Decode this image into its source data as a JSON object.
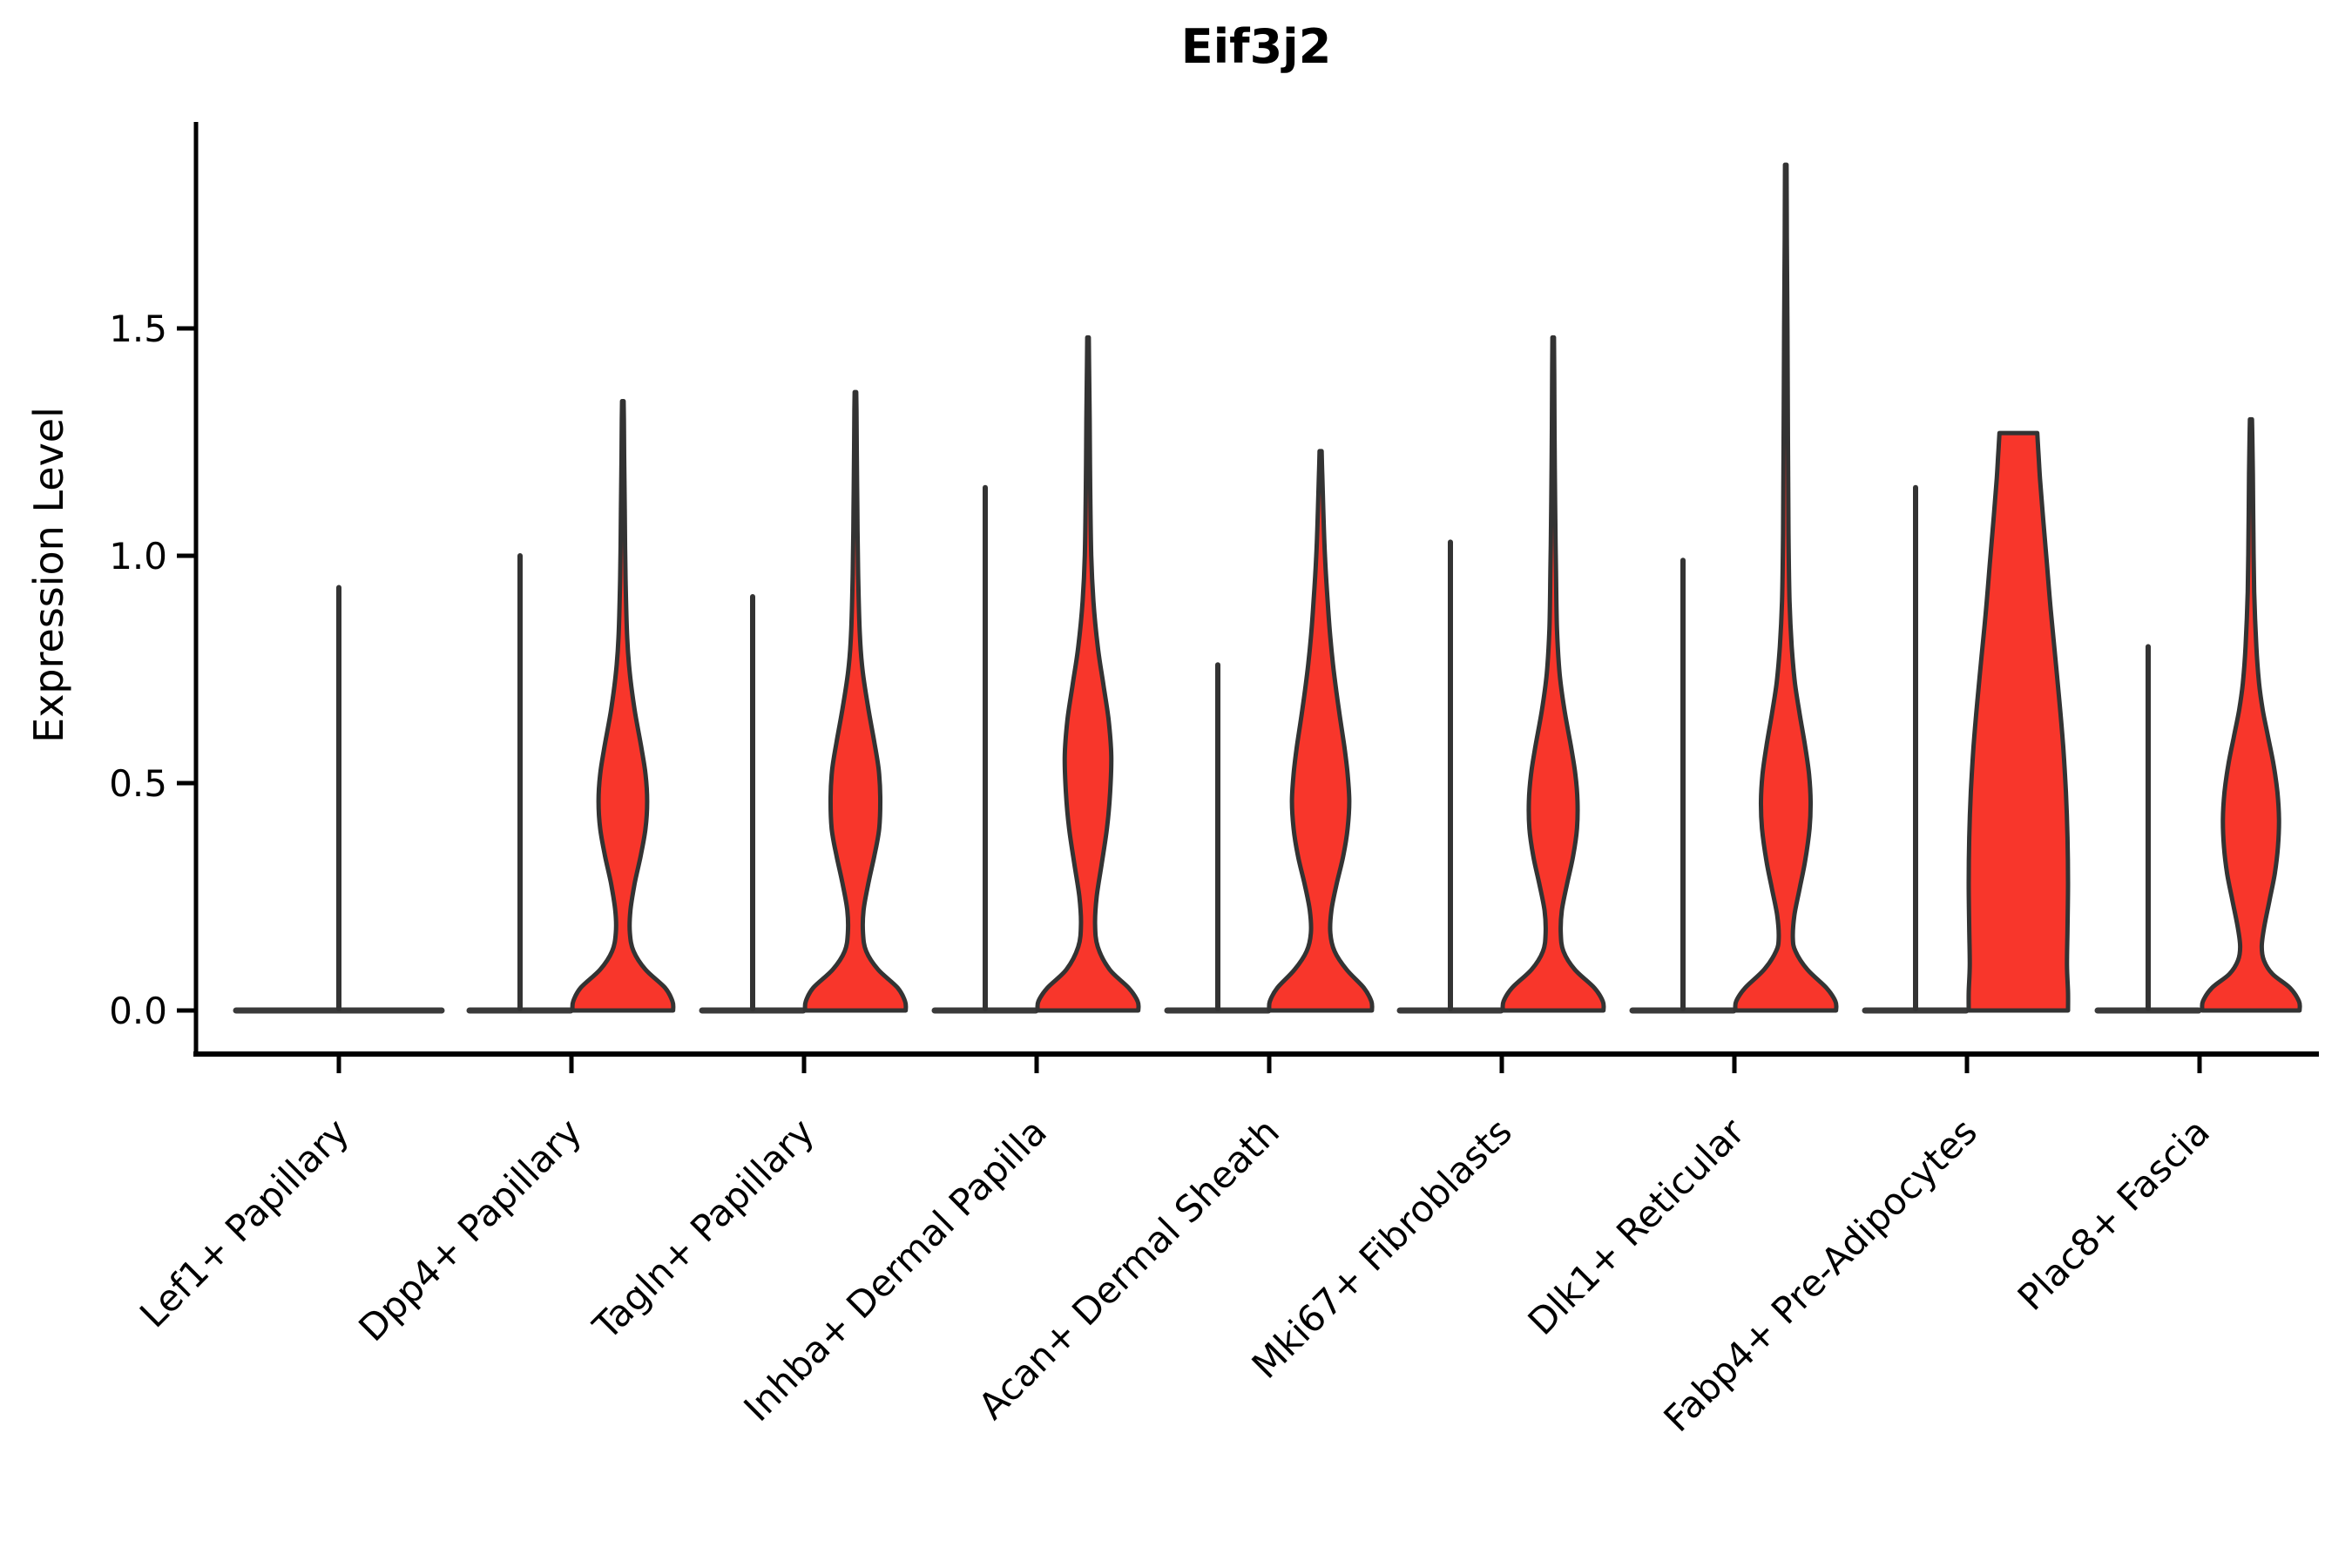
{
  "chart_data": {
    "type": "violin",
    "title": "Eif3j2",
    "ylabel": "Expression Level",
    "xlabel": "",
    "ylim": [
      -0.095,
      1.95
    ],
    "yticks": [
      0.0,
      0.5,
      1.0,
      1.5
    ],
    "ytick_labels": [
      "0.0",
      "0.5",
      "1.0",
      "1.5"
    ],
    "grid": false,
    "legend": "none",
    "fill_color": "#F8362B",
    "edge_color": "#333333",
    "spine_color": "#000000",
    "categories": [
      "Lef1+ Papillary",
      "Dpp4+ Papillary",
      "Tagln+ Papillary",
      "Inhba+ Dermal Papilla",
      "Acan+ Dermal Sheath",
      "Mki67+ Fibroblasts",
      "Dlk1+ Reticular",
      "Fabp4+ Pre-Adipocytes",
      "Plac8+ Fascia"
    ],
    "violins": [
      {
        "label": "Lef1+ Papillary",
        "layout": "single",
        "zero_spike_max": 0.93,
        "red_max": null,
        "red_profile": null
      },
      {
        "label": "Dpp4+ Papillary",
        "layout": "split",
        "zero_spike_max": 1.0,
        "red_max": 1.34,
        "red_profile": [
          [
            0,
            0.93
          ],
          [
            0.02,
            0.92
          ],
          [
            0.05,
            0.78
          ],
          [
            0.09,
            0.42
          ],
          [
            0.13,
            0.2
          ],
          [
            0.17,
            0.13
          ],
          [
            0.22,
            0.14
          ],
          [
            0.28,
            0.22
          ],
          [
            0.34,
            0.33
          ],
          [
            0.4,
            0.42
          ],
          [
            0.46,
            0.45
          ],
          [
            0.52,
            0.42
          ],
          [
            0.58,
            0.34
          ],
          [
            0.66,
            0.22
          ],
          [
            0.74,
            0.13
          ],
          [
            0.82,
            0.08
          ],
          [
            0.95,
            0.05
          ],
          [
            1.1,
            0.035
          ],
          [
            1.22,
            0.025
          ],
          [
            1.3,
            0.02
          ],
          [
            1.34,
            0.015
          ]
        ]
      },
      {
        "label": "Tagln+ Papillary",
        "layout": "split",
        "zero_spike_max": 0.91,
        "red_max": 1.36,
        "red_profile": [
          [
            0,
            0.93
          ],
          [
            0.02,
            0.92
          ],
          [
            0.05,
            0.78
          ],
          [
            0.09,
            0.42
          ],
          [
            0.13,
            0.2
          ],
          [
            0.17,
            0.14
          ],
          [
            0.22,
            0.15
          ],
          [
            0.28,
            0.24
          ],
          [
            0.34,
            0.35
          ],
          [
            0.4,
            0.44
          ],
          [
            0.47,
            0.46
          ],
          [
            0.53,
            0.43
          ],
          [
            0.59,
            0.35
          ],
          [
            0.67,
            0.23
          ],
          [
            0.75,
            0.13
          ],
          [
            0.83,
            0.08
          ],
          [
            0.96,
            0.05
          ],
          [
            1.1,
            0.035
          ],
          [
            1.24,
            0.025
          ],
          [
            1.32,
            0.02
          ],
          [
            1.36,
            0.015
          ]
        ]
      },
      {
        "label": "Inhba+ Dermal Papilla",
        "layout": "split",
        "zero_spike_max": 1.15,
        "red_max": 1.48,
        "red_profile": [
          [
            0,
            0.93
          ],
          [
            0.02,
            0.92
          ],
          [
            0.05,
            0.75
          ],
          [
            0.09,
            0.4
          ],
          [
            0.14,
            0.18
          ],
          [
            0.19,
            0.13
          ],
          [
            0.25,
            0.16
          ],
          [
            0.32,
            0.25
          ],
          [
            0.4,
            0.35
          ],
          [
            0.48,
            0.41
          ],
          [
            0.56,
            0.43
          ],
          [
            0.64,
            0.38
          ],
          [
            0.72,
            0.28
          ],
          [
            0.8,
            0.18
          ],
          [
            0.9,
            0.1
          ],
          [
            1.0,
            0.06
          ],
          [
            1.15,
            0.04
          ],
          [
            1.3,
            0.03
          ],
          [
            1.42,
            0.02
          ],
          [
            1.48,
            0.015
          ]
        ]
      },
      {
        "label": "Acan+ Dermal Sheath",
        "layout": "split",
        "zero_spike_max": 0.76,
        "red_max": 1.23,
        "red_profile": [
          [
            0,
            0.95
          ],
          [
            0.02,
            0.94
          ],
          [
            0.05,
            0.8
          ],
          [
            0.09,
            0.48
          ],
          [
            0.13,
            0.26
          ],
          [
            0.17,
            0.18
          ],
          [
            0.22,
            0.2
          ],
          [
            0.28,
            0.3
          ],
          [
            0.34,
            0.42
          ],
          [
            0.4,
            0.5
          ],
          [
            0.46,
            0.53
          ],
          [
            0.52,
            0.5
          ],
          [
            0.58,
            0.44
          ],
          [
            0.66,
            0.34
          ],
          [
            0.74,
            0.25
          ],
          [
            0.82,
            0.18
          ],
          [
            0.9,
            0.13
          ],
          [
            1.0,
            0.08
          ],
          [
            1.1,
            0.05
          ],
          [
            1.18,
            0.03
          ],
          [
            1.23,
            0.02
          ]
        ]
      },
      {
        "label": "Mki67+ Fibroblasts",
        "layout": "split",
        "zero_spike_max": 1.03,
        "red_max": 1.48,
        "red_profile": [
          [
            0,
            0.93
          ],
          [
            0.02,
            0.92
          ],
          [
            0.05,
            0.76
          ],
          [
            0.09,
            0.4
          ],
          [
            0.13,
            0.19
          ],
          [
            0.17,
            0.14
          ],
          [
            0.22,
            0.16
          ],
          [
            0.28,
            0.26
          ],
          [
            0.34,
            0.37
          ],
          [
            0.4,
            0.44
          ],
          [
            0.46,
            0.45
          ],
          [
            0.52,
            0.41
          ],
          [
            0.58,
            0.33
          ],
          [
            0.66,
            0.21
          ],
          [
            0.74,
            0.12
          ],
          [
            0.84,
            0.07
          ],
          [
            0.98,
            0.05
          ],
          [
            1.12,
            0.035
          ],
          [
            1.28,
            0.025
          ],
          [
            1.4,
            0.02
          ],
          [
            1.48,
            0.015
          ]
        ]
      },
      {
        "label": "Dlk1+ Reticular",
        "layout": "split",
        "zero_spike_max": 0.99,
        "red_max": 1.86,
        "red_profile": [
          [
            0,
            0.93
          ],
          [
            0.02,
            0.92
          ],
          [
            0.05,
            0.75
          ],
          [
            0.09,
            0.4
          ],
          [
            0.13,
            0.18
          ],
          [
            0.16,
            0.13
          ],
          [
            0.21,
            0.16
          ],
          [
            0.27,
            0.26
          ],
          [
            0.33,
            0.36
          ],
          [
            0.4,
            0.44
          ],
          [
            0.46,
            0.46
          ],
          [
            0.52,
            0.43
          ],
          [
            0.58,
            0.36
          ],
          [
            0.65,
            0.26
          ],
          [
            0.72,
            0.17
          ],
          [
            0.8,
            0.11
          ],
          [
            0.9,
            0.07
          ],
          [
            1.05,
            0.05
          ],
          [
            1.25,
            0.04
          ],
          [
            1.5,
            0.03
          ],
          [
            1.7,
            0.02
          ],
          [
            1.86,
            0.015
          ]
        ]
      },
      {
        "label": "Fabp4+ Pre-Adipocytes",
        "layout": "split",
        "zero_spike_max": 1.15,
        "red_max": 1.27,
        "red_profile": [
          [
            0,
            0.92
          ],
          [
            0.04,
            0.92
          ],
          [
            0.1,
            0.9
          ],
          [
            0.18,
            0.91
          ],
          [
            0.28,
            0.92
          ],
          [
            0.38,
            0.91
          ],
          [
            0.48,
            0.88
          ],
          [
            0.58,
            0.83
          ],
          [
            0.68,
            0.76
          ],
          [
            0.78,
            0.68
          ],
          [
            0.88,
            0.6
          ],
          [
            0.98,
            0.53
          ],
          [
            1.08,
            0.46
          ],
          [
            1.17,
            0.4
          ],
          [
            1.23,
            0.37
          ],
          [
            1.27,
            0.35
          ]
        ]
      },
      {
        "label": "Plac8+ Fascia",
        "layout": "split",
        "zero_spike_max": 0.8,
        "red_max": 1.3,
        "red_profile": [
          [
            0,
            0.9
          ],
          [
            0.02,
            0.89
          ],
          [
            0.05,
            0.72
          ],
          [
            0.08,
            0.4
          ],
          [
            0.11,
            0.24
          ],
          [
            0.14,
            0.2
          ],
          [
            0.18,
            0.24
          ],
          [
            0.24,
            0.34
          ],
          [
            0.3,
            0.44
          ],
          [
            0.36,
            0.5
          ],
          [
            0.42,
            0.52
          ],
          [
            0.48,
            0.49
          ],
          [
            0.54,
            0.42
          ],
          [
            0.6,
            0.32
          ],
          [
            0.66,
            0.22
          ],
          [
            0.72,
            0.15
          ],
          [
            0.8,
            0.1
          ],
          [
            0.92,
            0.06
          ],
          [
            1.05,
            0.045
          ],
          [
            1.18,
            0.035
          ],
          [
            1.26,
            0.025
          ],
          [
            1.3,
            0.02
          ]
        ]
      }
    ]
  }
}
